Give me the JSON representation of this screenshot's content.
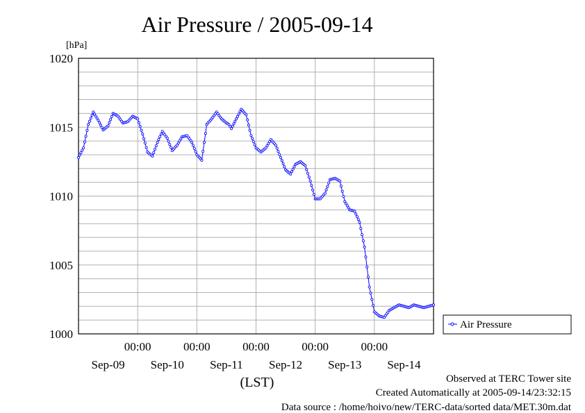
{
  "chart_data": {
    "type": "line",
    "title": "Air Pressure / 2005-09-14",
    "yunit": "[hPa]",
    "xlabel": "(LST)",
    "ylim": [
      1000,
      1020
    ],
    "yticks": [
      "1000",
      "1005",
      "1010",
      "1015",
      "1020"
    ],
    "xlim": [
      0,
      144
    ],
    "xtick_times": [
      "00:00",
      "00:00",
      "00:00",
      "00:00",
      "00:00"
    ],
    "xtick_dates": [
      "Sep-09",
      "Sep-10",
      "Sep-11",
      "Sep-12",
      "Sep-13",
      "Sep-14"
    ],
    "grid": true,
    "legend_position": "right",
    "series": [
      {
        "name": "Air Pressure",
        "color": "#0000ff",
        "marker": "circle",
        "x": [
          0,
          2,
          4,
          6,
          8,
          10,
          12,
          14,
          16,
          18,
          20,
          22,
          24,
          26,
          28,
          30,
          32,
          34,
          36,
          38,
          40,
          42,
          44,
          46,
          48,
          50,
          52,
          54,
          56,
          58,
          60,
          61,
          62,
          64,
          66,
          68,
          70,
          72,
          74,
          76,
          78,
          80,
          82,
          84,
          86,
          88,
          90,
          92,
          94,
          96,
          98,
          100,
          102,
          104,
          106,
          108,
          110,
          112,
          114,
          116,
          118,
          120,
          122,
          124,
          126,
          128,
          130,
          132,
          134,
          136,
          138,
          140,
          142,
          144
        ],
        "values": [
          1012.8,
          1013.5,
          1015.2,
          1016.1,
          1015.5,
          1014.8,
          1015.1,
          1016.0,
          1015.8,
          1015.3,
          1015.4,
          1015.8,
          1015.6,
          1014.5,
          1013.2,
          1012.9,
          1013.9,
          1014.7,
          1014.2,
          1013.3,
          1013.7,
          1014.3,
          1014.4,
          1013.9,
          1013.0,
          1012.6,
          1015.2,
          1015.6,
          1016.1,
          1015.6,
          1015.3,
          1015.2,
          1014.9,
          1015.6,
          1016.3,
          1015.9,
          1014.4,
          1013.5,
          1013.2,
          1013.5,
          1014.1,
          1013.7,
          1012.8,
          1011.9,
          1011.6,
          1012.3,
          1012.5,
          1012.2,
          1011.1,
          1009.8,
          1009.8,
          1010.2,
          1011.2,
          1011.3,
          1011.1,
          1009.6,
          1009.0,
          1008.9,
          1008.1,
          1006.3,
          1003.4,
          1001.6,
          1001.3,
          1001.2,
          1001.7,
          1001.9,
          1002.1,
          1002.0,
          1001.9,
          1002.1,
          1002.0,
          1001.9,
          1002.0,
          1002.1
        ]
      }
    ]
  },
  "footer": {
    "line1": "Observed at TERC Tower site",
    "line2": "Created Automatically at 2005-09-14/23:32:15",
    "line3": "Data source : /home/hoivo/new/TERC-data/sorted  data/MET.30m.dat"
  }
}
